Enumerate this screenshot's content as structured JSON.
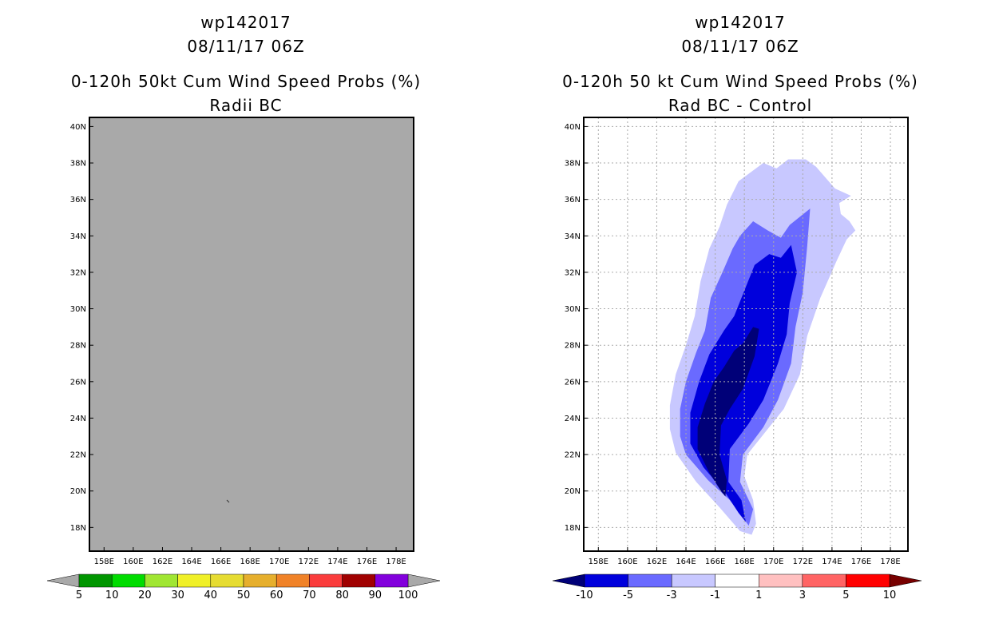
{
  "left": {
    "title1": "wp142017",
    "title2": "08/11/17 06Z",
    "title3": "0-120h 50kt Cum Wind Speed Probs (%)",
    "title4": "Radii BC"
  },
  "right": {
    "title1": "wp142017",
    "title2": "08/11/17 06Z",
    "title3": "0-120h 50 kt Cum Wind Speed Probs (%)",
    "title4": "Rad BC - Control"
  },
  "colors": {
    "land_gray": "#a9a9a9",
    "grid": "#aaaaaa"
  },
  "chart_data": [
    {
      "type": "heatmap",
      "name": "Radii BC",
      "xlabel": "",
      "ylabel": "",
      "xlim": [
        157,
        179.2
      ],
      "ylim": [
        16.7,
        40.5
      ],
      "xticks": [
        "158E",
        "160E",
        "162E",
        "164E",
        "166E",
        "168E",
        "170E",
        "172E",
        "174E",
        "176E",
        "178E"
      ],
      "yticks": [
        "18N",
        "20N",
        "22N",
        "24N",
        "26N",
        "28N",
        "30N",
        "32N",
        "34N",
        "36N",
        "38N",
        "40N"
      ],
      "xtick_values": [
        158,
        160,
        162,
        164,
        166,
        168,
        170,
        172,
        174,
        176,
        178
      ],
      "ytick_values": [
        18,
        20,
        22,
        24,
        26,
        28,
        30,
        32,
        34,
        36,
        38,
        40
      ],
      "grid": false,
      "colorbar": {
        "labels": [
          "5",
          "10",
          "20",
          "30",
          "40",
          "50",
          "60",
          "70",
          "80",
          "90",
          "100"
        ],
        "colors": [
          "#009600",
          "#00dc00",
          "#a0e632",
          "#f0f028",
          "#e6dc32",
          "#e6af2d",
          "#f08228",
          "#fa3c3c",
          "#a00000",
          "#8200dc"
        ]
      },
      "content": "Field entirely gray (no probability shading); small dark mark near 166.8E 19.3N"
    },
    {
      "type": "heatmap",
      "name": "Rad BC - Control",
      "xlabel": "",
      "ylabel": "",
      "xlim": [
        157,
        179.2
      ],
      "ylim": [
        16.7,
        40.5
      ],
      "xticks": [
        "158E",
        "160E",
        "162E",
        "164E",
        "166E",
        "168E",
        "170E",
        "172E",
        "174E",
        "176E",
        "178E"
      ],
      "yticks": [
        "18N",
        "20N",
        "22N",
        "24N",
        "26N",
        "28N",
        "30N",
        "32N",
        "34N",
        "36N",
        "38N",
        "40N"
      ],
      "xtick_values": [
        158,
        160,
        162,
        164,
        166,
        168,
        170,
        172,
        174,
        176,
        178
      ],
      "ytick_values": [
        18,
        20,
        22,
        24,
        26,
        28,
        30,
        32,
        34,
        36,
        38,
        40
      ],
      "grid": true,
      "colorbar": {
        "labels": [
          "-10",
          "-5",
          "-3",
          "-1",
          "1",
          "3",
          "5",
          "10"
        ],
        "colors": [
          "#0000dc",
          "#6a6aff",
          "#c8c8ff",
          "#ffffff",
          "#ffc0c0",
          "#ff6464",
          "#ff0000"
        ],
        "low_arrow": "#000078",
        "high_arrow": "#780000"
      },
      "contours": [
        {
          "level": "-3 to -1",
          "color": "#c8c8ff",
          "polygon": [
            [
              168.5,
              17.6
            ],
            [
              168.8,
              18.2
            ],
            [
              168.6,
              19.5
            ],
            [
              168.0,
              20.8
            ],
            [
              168.2,
              22.0
            ],
            [
              169.5,
              23.3
            ],
            [
              170.7,
              24.5
            ],
            [
              171.8,
              26.4
            ],
            [
              172.3,
              28.5
            ],
            [
              173.2,
              30.6
            ],
            [
              174.3,
              32.6
            ],
            [
              175.0,
              33.8
            ],
            [
              175.6,
              34.3
            ],
            [
              175.2,
              34.8
            ],
            [
              174.6,
              35.2
            ],
            [
              174.5,
              35.8
            ],
            [
              175.3,
              36.2
            ],
            [
              174.2,
              36.6
            ],
            [
              172.9,
              37.8
            ],
            [
              172.2,
              38.2
            ],
            [
              171.0,
              38.2
            ],
            [
              170.2,
              37.7
            ],
            [
              169.3,
              38.0
            ],
            [
              167.6,
              37.0
            ],
            [
              166.8,
              35.7
            ],
            [
              166.3,
              34.5
            ],
            [
              165.6,
              33.3
            ],
            [
              165.0,
              31.5
            ],
            [
              164.6,
              29.6
            ],
            [
              164.0,
              28.0
            ],
            [
              163.3,
              26.4
            ],
            [
              162.9,
              24.7
            ],
            [
              162.9,
              23.4
            ],
            [
              163.3,
              22.1
            ],
            [
              164.7,
              20.5
            ],
            [
              166.3,
              19.1
            ],
            [
              167.7,
              17.8
            ]
          ]
        },
        {
          "level": "-5 to -3",
          "color": "#6a6aff",
          "polygon": [
            [
              168.3,
              18.1
            ],
            [
              168.6,
              19.0
            ],
            [
              167.7,
              20.5
            ],
            [
              167.9,
              22.0
            ],
            [
              169.3,
              23.5
            ],
            [
              170.3,
              25.0
            ],
            [
              171.2,
              27.0
            ],
            [
              171.5,
              29.0
            ],
            [
              172.0,
              30.9
            ],
            [
              172.3,
              33.4
            ],
            [
              172.5,
              35.5
            ],
            [
              171.1,
              34.6
            ],
            [
              170.5,
              33.9
            ],
            [
              169.6,
              34.3
            ],
            [
              168.6,
              34.8
            ],
            [
              167.7,
              34.0
            ],
            [
              167.2,
              33.3
            ],
            [
              166.5,
              32.0
            ],
            [
              165.7,
              30.6
            ],
            [
              165.3,
              28.8
            ],
            [
              164.7,
              27.6
            ],
            [
              164.0,
              26.0
            ],
            [
              163.6,
              24.5
            ],
            [
              163.6,
              23.0
            ],
            [
              164.0,
              22.0
            ],
            [
              165.5,
              20.6
            ],
            [
              167.0,
              19.5
            ]
          ]
        },
        {
          "level": "-10 to -5",
          "color": "#0000dc",
          "polygon": [
            [
              168.1,
              18.3
            ],
            [
              167.8,
              19.5
            ],
            [
              166.9,
              20.5
            ],
            [
              167.0,
              22.3
            ],
            [
              168.3,
              23.7
            ],
            [
              169.3,
              25.0
            ],
            [
              170.3,
              27.0
            ],
            [
              170.9,
              28.6
            ],
            [
              171.1,
              30.3
            ],
            [
              171.6,
              32.0
            ],
            [
              171.2,
              33.5
            ],
            [
              170.5,
              32.8
            ],
            [
              169.7,
              33.0
            ],
            [
              168.7,
              32.4
            ],
            [
              168.0,
              31.0
            ],
            [
              167.3,
              29.6
            ],
            [
              166.6,
              28.8
            ],
            [
              165.6,
              27.5
            ],
            [
              164.9,
              26.0
            ],
            [
              164.3,
              24.3
            ],
            [
              164.3,
              22.6
            ],
            [
              165.2,
              21.3
            ],
            [
              166.7,
              19.9
            ],
            [
              167.6,
              18.8
            ]
          ]
        },
        {
          "level": "< -10",
          "color": "#000078",
          "polygon": [
            [
              166.7,
              19.7
            ],
            [
              166.8,
              20.6
            ],
            [
              166.3,
              22.0
            ],
            [
              166.4,
              23.6
            ],
            [
              167.0,
              24.5
            ],
            [
              167.9,
              25.6
            ],
            [
              168.7,
              27.4
            ],
            [
              169.0,
              28.9
            ],
            [
              168.6,
              29.0
            ],
            [
              167.9,
              28.1
            ],
            [
              167.3,
              27.7
            ],
            [
              166.6,
              26.8
            ],
            [
              165.9,
              26.0
            ],
            [
              165.3,
              24.8
            ],
            [
              164.8,
              23.5
            ],
            [
              164.8,
              22.3
            ],
            [
              165.6,
              21.0
            ],
            [
              166.4,
              20.0
            ]
          ]
        }
      ]
    }
  ]
}
